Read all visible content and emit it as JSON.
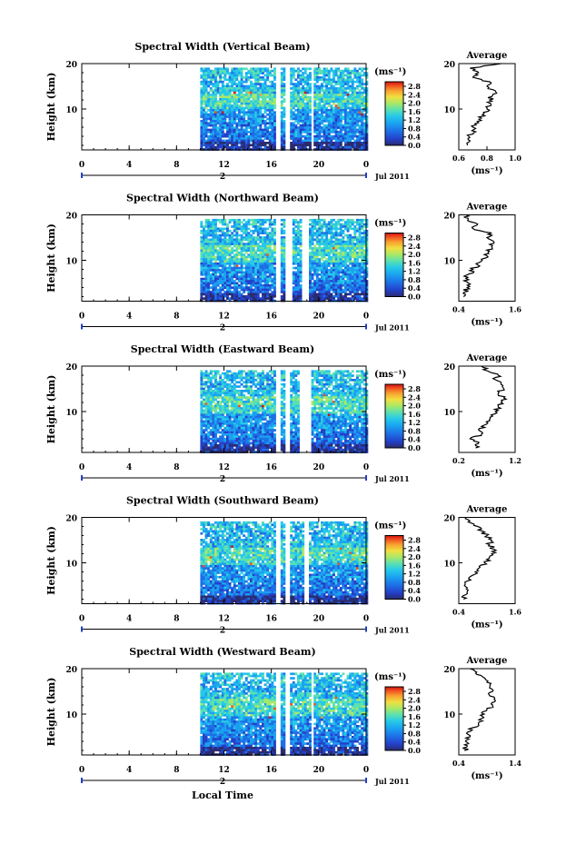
{
  "shared": {
    "ylabel": "Height (km)",
    "x_tick_labels": [
      "0",
      "4",
      "8",
      "12",
      "16",
      "20",
      "0"
    ],
    "y_tick_labels": [
      "20",
      "10"
    ],
    "date_marker": "2",
    "date_label": "Jul 2011",
    "colorbar_unit": "(ms⁻¹)",
    "colorbar_ticks": [
      "2.8",
      "2.4",
      "2.0",
      "1.6",
      "1.2",
      "0.8",
      "0.4",
      "0.0"
    ],
    "average_title": "Average",
    "average_xlabel": "(ms⁻¹)",
    "xlabel": "Local Time",
    "colors": {
      "scale": [
        "#2b2b6e",
        "#2340c8",
        "#1e6fe6",
        "#1aa0f0",
        "#26c9e8",
        "#5be0b0",
        "#a8e868",
        "#f0e040",
        "#f8a030",
        "#f05020",
        "#d01010"
      ],
      "gap": "#ffffff",
      "axis": "#000000"
    }
  },
  "chart_data": [
    {
      "type": "heatmap",
      "title": "Spectral Width (Vertical Beam)",
      "xlabel": "",
      "ylabel": "Height (km)",
      "xlim": [
        0,
        24
      ],
      "ylim": [
        1,
        20
      ],
      "clim": [
        0.0,
        3.0
      ],
      "data_start_hour": 10,
      "data_gaps_hours": [
        [
          16.3,
          16.6
        ],
        [
          17.1,
          17.5
        ],
        [
          19.2,
          19.5
        ]
      ],
      "average": {
        "title": "Average",
        "xlim": [
          0.6,
          1.0
        ],
        "xticks": [
          "0.6",
          "0.8",
          "1.0"
        ],
        "height": [
          2,
          3,
          4,
          5,
          6,
          7,
          8,
          9,
          10,
          11,
          12,
          13,
          14,
          15,
          16,
          17,
          18,
          19,
          20
        ],
        "values": [
          0.66,
          0.68,
          0.67,
          0.72,
          0.7,
          0.74,
          0.76,
          0.78,
          0.8,
          0.83,
          0.82,
          0.84,
          0.86,
          0.8,
          0.82,
          0.7,
          0.74,
          0.68,
          0.9
        ]
      }
    },
    {
      "type": "heatmap",
      "title": "Spectral Width (Northward Beam)",
      "xlabel": "",
      "ylabel": "Height (km)",
      "xlim": [
        0,
        24
      ],
      "ylim": [
        1,
        20
      ],
      "clim": [
        0.0,
        3.0
      ],
      "data_start_hour": 10,
      "data_gaps_hours": [
        [
          16.3,
          16.6
        ],
        [
          17.1,
          17.6
        ],
        [
          18.4,
          19.0
        ]
      ],
      "average": {
        "title": "Average",
        "xlim": [
          0.4,
          1.6
        ],
        "xticks": [
          "0.4",
          "1.6"
        ],
        "height": [
          2,
          3,
          4,
          5,
          6,
          7,
          8,
          9,
          10,
          11,
          12,
          13,
          14,
          15,
          16,
          17,
          18,
          19,
          20
        ],
        "values": [
          0.5,
          0.52,
          0.58,
          0.6,
          0.55,
          0.62,
          0.7,
          0.8,
          0.9,
          1.0,
          1.05,
          1.1,
          1.15,
          1.0,
          1.1,
          0.7,
          0.8,
          0.6,
          0.55
        ]
      }
    },
    {
      "type": "heatmap",
      "title": "Spectral Width (Eastward Beam)",
      "xlabel": "",
      "ylabel": "Height (km)",
      "xlim": [
        0,
        24
      ],
      "ylim": [
        1,
        20
      ],
      "clim": [
        0.0,
        3.0
      ],
      "data_start_hour": 10,
      "data_gaps_hours": [
        [
          16.3,
          16.6
        ],
        [
          17.1,
          17.5
        ],
        [
          18.3,
          19.2
        ]
      ],
      "average": {
        "title": "Average",
        "xlim": [
          0.2,
          1.2
        ],
        "xticks": [
          "0.2",
          "1.2"
        ],
        "height": [
          2,
          3,
          4,
          5,
          6,
          7,
          8,
          9,
          10,
          11,
          12,
          13,
          14,
          15,
          16,
          17,
          18,
          19,
          20
        ],
        "values": [
          0.5,
          0.55,
          0.4,
          0.6,
          0.55,
          0.65,
          0.75,
          0.8,
          0.85,
          0.9,
          0.95,
          1.0,
          0.9,
          1.0,
          0.95,
          0.85,
          0.9,
          0.7,
          0.6
        ]
      }
    },
    {
      "type": "heatmap",
      "title": "Spectral Width (Southward Beam)",
      "xlabel": "",
      "ylabel": "Height (km)",
      "xlim": [
        0,
        24
      ],
      "ylim": [
        1,
        20
      ],
      "clim": [
        0.0,
        3.0
      ],
      "data_start_hour": 10,
      "data_gaps_hours": [
        [
          16.3,
          16.6
        ],
        [
          17.1,
          17.4
        ],
        [
          18.7,
          19.0
        ]
      ],
      "average": {
        "title": "Average",
        "xlim": [
          0.4,
          1.6
        ],
        "xticks": [
          "0.4",
          "1.6"
        ],
        "height": [
          2,
          3,
          4,
          5,
          6,
          7,
          8,
          9,
          10,
          11,
          12,
          13,
          14,
          15,
          16,
          17,
          18,
          19,
          20
        ],
        "values": [
          0.5,
          0.55,
          0.6,
          0.52,
          0.58,
          0.65,
          0.75,
          0.85,
          0.95,
          1.05,
          1.1,
          1.15,
          1.05,
          1.1,
          1.0,
          0.9,
          0.8,
          0.6,
          0.55
        ]
      }
    },
    {
      "type": "heatmap",
      "title": "Spectral Width (Westward Beam)",
      "xlabel": "Local Time",
      "ylabel": "Height (km)",
      "xlim": [
        0,
        24
      ],
      "ylim": [
        1,
        20
      ],
      "clim": [
        0.0,
        3.0
      ],
      "data_start_hour": 10,
      "data_gaps_hours": [
        [
          16.3,
          16.6
        ],
        [
          17.1,
          17.5
        ],
        [
          19.2,
          19.5
        ]
      ],
      "average": {
        "title": "Average",
        "xlim": [
          0.4,
          1.4
        ],
        "xticks": [
          "0.4",
          "1.4"
        ],
        "height": [
          2,
          3,
          4,
          5,
          6,
          7,
          8,
          9,
          10,
          11,
          12,
          13,
          14,
          15,
          16,
          17,
          18,
          19,
          20
        ],
        "values": [
          0.5,
          0.55,
          0.52,
          0.6,
          0.55,
          0.65,
          0.75,
          0.8,
          0.85,
          0.9,
          1.0,
          1.05,
          0.95,
          1.0,
          0.95,
          0.9,
          0.85,
          0.7,
          0.6
        ]
      }
    }
  ]
}
